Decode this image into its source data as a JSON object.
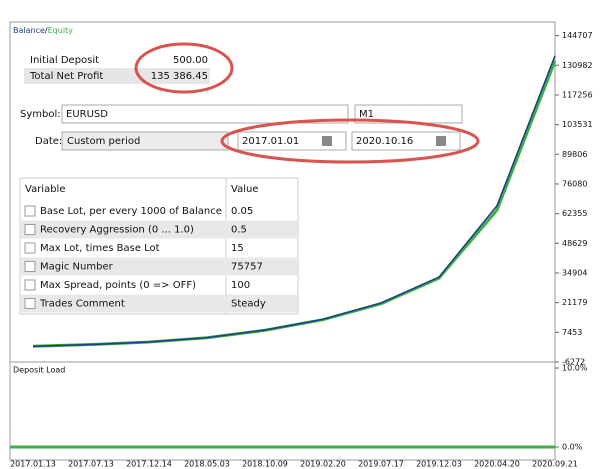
{
  "summary": [
    {
      "label": "Initial Deposit",
      "value": "500.00"
    },
    {
      "label": "Total Net Profit",
      "value": "135 386.45"
    }
  ],
  "symbol": {
    "label": "Symbol:",
    "value": "EURUSD",
    "period": "M1"
  },
  "date": {
    "label": "Date:",
    "mode": "Custom period",
    "from": "2017.01.01",
    "to": "2020.10.16"
  },
  "parameters": {
    "header": [
      "Variable",
      "Value"
    ],
    "rows": [
      [
        "Base Lot, per every 1000 of Balance",
        "0.05"
      ],
      [
        "Recovery Aggression (0 ... 1.0)",
        "0.5"
      ],
      [
        "Max Lot, times Base Lot",
        "15"
      ],
      [
        "Magic Number",
        "75757"
      ],
      [
        "Max Spread, points (0 => OFF)",
        "100"
      ],
      [
        "Trades Comment",
        "Steady"
      ]
    ]
  },
  "chart_data": [
    {
      "type": "line",
      "legend_separator": "/",
      "categories": [
        "2017.01.13",
        "2017.07.13",
        "2017.12.14",
        "2018.05.03",
        "2018.10.09",
        "2019.02.20",
        "2019.07.17",
        "2019.12.03",
        "2020.04.20",
        "2020.09.21"
      ],
      "series": [
        {
          "name": "Balance",
          "color": "#1f3f8c",
          "values": [
            1000,
            1800,
            3000,
            5000,
            8500,
            13500,
            21000,
            33000,
            66000,
            135386
          ]
        },
        {
          "name": "Equity",
          "color": "#3cb043",
          "values": [
            1000,
            1800,
            2950,
            4950,
            8400,
            13300,
            20700,
            32500,
            64000,
            133000
          ]
        }
      ],
      "ylim": [
        -6272,
        151000
      ],
      "yticks": [
        -6272,
        7453,
        21179,
        34904,
        48629,
        62355,
        76080,
        89806,
        103531,
        117256,
        130982,
        144707
      ]
    },
    {
      "type": "bar",
      "title": "Deposit Load",
      "ylim": [
        0,
        10
      ],
      "yticks": [
        {
          "value": 0,
          "label": "0.0%"
        },
        {
          "value": 10,
          "label": "10.0%"
        }
      ]
    }
  ]
}
